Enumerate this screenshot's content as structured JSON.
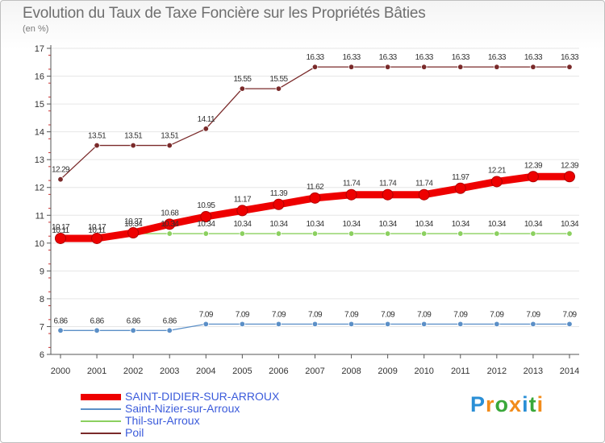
{
  "title": "Evolution du Taux de Taxe Foncière sur les Propriétés Bâties",
  "unit": "(en %)",
  "logo": "Proxiti",
  "colors": {
    "axis": "#555555",
    "grid": "#e6e6e6"
  },
  "chart_data": {
    "type": "line",
    "title": "Evolution du Taux de Taxe Foncière sur les Propriétés Bâties",
    "ylabel": "(en %)",
    "xlabel": "",
    "ylim": [
      6,
      17
    ],
    "yticks": [
      "6",
      "7",
      "8",
      "9",
      "10",
      "11",
      "12",
      "13",
      "14",
      "15",
      "16",
      "17"
    ],
    "categories": [
      "2000",
      "2001",
      "2002",
      "2003",
      "2004",
      "2005",
      "2006",
      "2007",
      "2008",
      "2009",
      "2010",
      "2011",
      "2012",
      "2013",
      "2014"
    ],
    "series": [
      {
        "name": "SAINT-DIDIER-SUR-ARROUX",
        "color": "#ee0000",
        "values": [
          10.17,
          10.17,
          10.37,
          10.68,
          10.95,
          11.17,
          11.39,
          11.62,
          11.74,
          11.74,
          11.74,
          11.97,
          12.21,
          12.39,
          12.39
        ],
        "labels": [
          "10.17",
          "10.17",
          "10.37",
          "10.68",
          "10.95",
          "11.17",
          "11.39",
          "11.62",
          "11.74",
          "11.74",
          "11.74",
          "11.97",
          "12.21",
          "12.39",
          "12.39"
        ]
      },
      {
        "name": "Saint-Nizier-sur-Arroux",
        "color": "#5b8fc7",
        "values": [
          6.86,
          6.86,
          6.86,
          6.86,
          7.09,
          7.09,
          7.09,
          7.09,
          7.09,
          7.09,
          7.09,
          7.09,
          7.09,
          7.09,
          7.09
        ],
        "labels": [
          "6.86",
          "6.86",
          "6.86",
          "6.86",
          "7.09",
          "7.09",
          "7.09",
          "7.09",
          "7.09",
          "7.09",
          "7.09",
          "7.09",
          "7.09",
          "7.09",
          "7.09"
        ]
      },
      {
        "name": "Thil-sur-Arroux",
        "color": "#8bd05f",
        "values": [
          10.11,
          10.11,
          10.34,
          10.34,
          10.34,
          10.34,
          10.34,
          10.34,
          10.34,
          10.34,
          10.34,
          10.34,
          10.34,
          10.34,
          10.34
        ],
        "labels": [
          "10.11",
          "10.11",
          "10.34",
          "10.34",
          "10.34",
          "10.34",
          "10.34",
          "10.34",
          "10.34",
          "10.34",
          "10.34",
          "10.34",
          "10.34",
          "10.34",
          "10.34"
        ]
      },
      {
        "name": "Poil",
        "color": "#7a2a2a",
        "values": [
          12.29,
          13.51,
          13.51,
          13.51,
          14.11,
          15.55,
          15.55,
          16.33,
          16.33,
          16.33,
          16.33,
          16.33,
          16.33,
          16.33,
          16.33
        ],
        "labels": [
          "12.29",
          "13.51",
          "13.51",
          "13.51",
          "14.11",
          "15.55",
          "15.55",
          "16.33",
          "16.33",
          "16.33",
          "16.33",
          "16.33",
          "16.33",
          "16.33",
          "16.33"
        ]
      }
    ]
  }
}
